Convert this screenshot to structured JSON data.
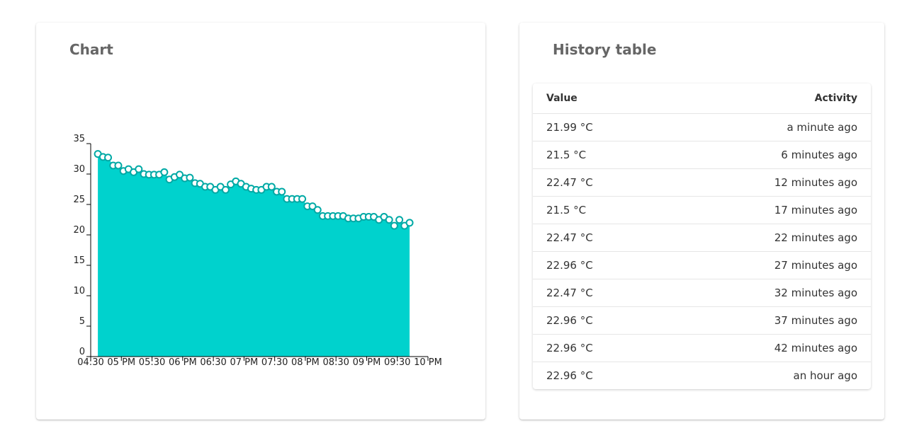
{
  "chart_card": {
    "title": "Chart"
  },
  "history_card": {
    "title": "History table",
    "table": {
      "header": [
        "Value",
        "Activity"
      ],
      "rows": [
        [
          "21.99 °C",
          "a minute ago"
        ],
        [
          "21.5 °C",
          "6 minutes ago"
        ],
        [
          "22.47 °C",
          "12 minutes ago"
        ],
        [
          "21.5 °C",
          "17 minutes ago"
        ],
        [
          "22.47 °C",
          "22 minutes ago"
        ],
        [
          "22.96 °C",
          "27 minutes ago"
        ],
        [
          "22.47 °C",
          "32 minutes ago"
        ],
        [
          "22.96 °C",
          "37 minutes ago"
        ],
        [
          "22.96 °C",
          "42 minutes ago"
        ],
        [
          "22.96 °C",
          "an hour ago"
        ]
      ]
    }
  },
  "chart_data": {
    "type": "area",
    "color": "#00d2cd",
    "marker_color": "#00a9a5",
    "x": [
      "16:37",
      "16:42",
      "16:47",
      "16:52",
      "16:57",
      "17:02",
      "17:07",
      "17:12",
      "17:17",
      "17:22",
      "17:27",
      "17:32",
      "17:37",
      "17:42",
      "17:47",
      "17:52",
      "17:57",
      "18:02",
      "18:07",
      "18:12",
      "18:17",
      "18:22",
      "18:27",
      "18:32",
      "18:37",
      "18:42",
      "18:47",
      "18:52",
      "18:57",
      "19:02",
      "19:07",
      "19:12",
      "19:17",
      "19:22",
      "19:27",
      "19:32",
      "19:37",
      "19:42",
      "19:47",
      "19:52",
      "19:57",
      "20:02",
      "20:07",
      "20:12",
      "20:17",
      "20:22",
      "20:27",
      "20:32",
      "20:37",
      "20:42",
      "20:47",
      "20:52",
      "20:57",
      "21:02",
      "21:07",
      "21:12",
      "21:17",
      "21:22",
      "21:27",
      "21:32",
      "21:37",
      "21:42"
    ],
    "values": [
      33.3,
      32.8,
      32.7,
      31.4,
      31.4,
      30.5,
      30.8,
      30.3,
      30.8,
      30.0,
      29.9,
      29.9,
      29.9,
      30.3,
      29.1,
      29.5,
      29.9,
      29.3,
      29.4,
      28.5,
      28.4,
      27.9,
      27.9,
      27.4,
      27.9,
      27.4,
      28.3,
      28.8,
      28.4,
      27.9,
      27.6,
      27.4,
      27.4,
      27.9,
      27.9,
      27.1,
      27.1,
      25.9,
      25.9,
      25.9,
      25.9,
      24.7,
      24.7,
      24.1,
      23.1,
      23.1,
      23.1,
      23.1,
      23.1,
      22.7,
      22.7,
      22.7,
      22.96,
      22.96,
      22.96,
      22.47,
      22.96,
      22.47,
      21.5,
      22.47,
      21.5,
      21.99
    ],
    "xlim": [
      "16:30",
      "22:00"
    ],
    "xticks": [
      {
        "value": "16:30",
        "label": "04:30"
      },
      {
        "value": "17:00",
        "label": "05 PM"
      },
      {
        "value": "17:30",
        "label": "05:30"
      },
      {
        "value": "18:00",
        "label": "06 PM"
      },
      {
        "value": "18:30",
        "label": "06:30"
      },
      {
        "value": "19:00",
        "label": "07 PM"
      },
      {
        "value": "19:30",
        "label": "07:30"
      },
      {
        "value": "20:00",
        "label": "08 PM"
      },
      {
        "value": "20:30",
        "label": "08:30"
      },
      {
        "value": "21:00",
        "label": "09 PM"
      },
      {
        "value": "21:30",
        "label": "09:30"
      },
      {
        "value": "22:00",
        "label": "10 PM"
      }
    ],
    "ylim": [
      0,
      35
    ],
    "yticks": [
      0,
      5,
      10,
      15,
      20,
      25,
      30,
      35
    ]
  }
}
